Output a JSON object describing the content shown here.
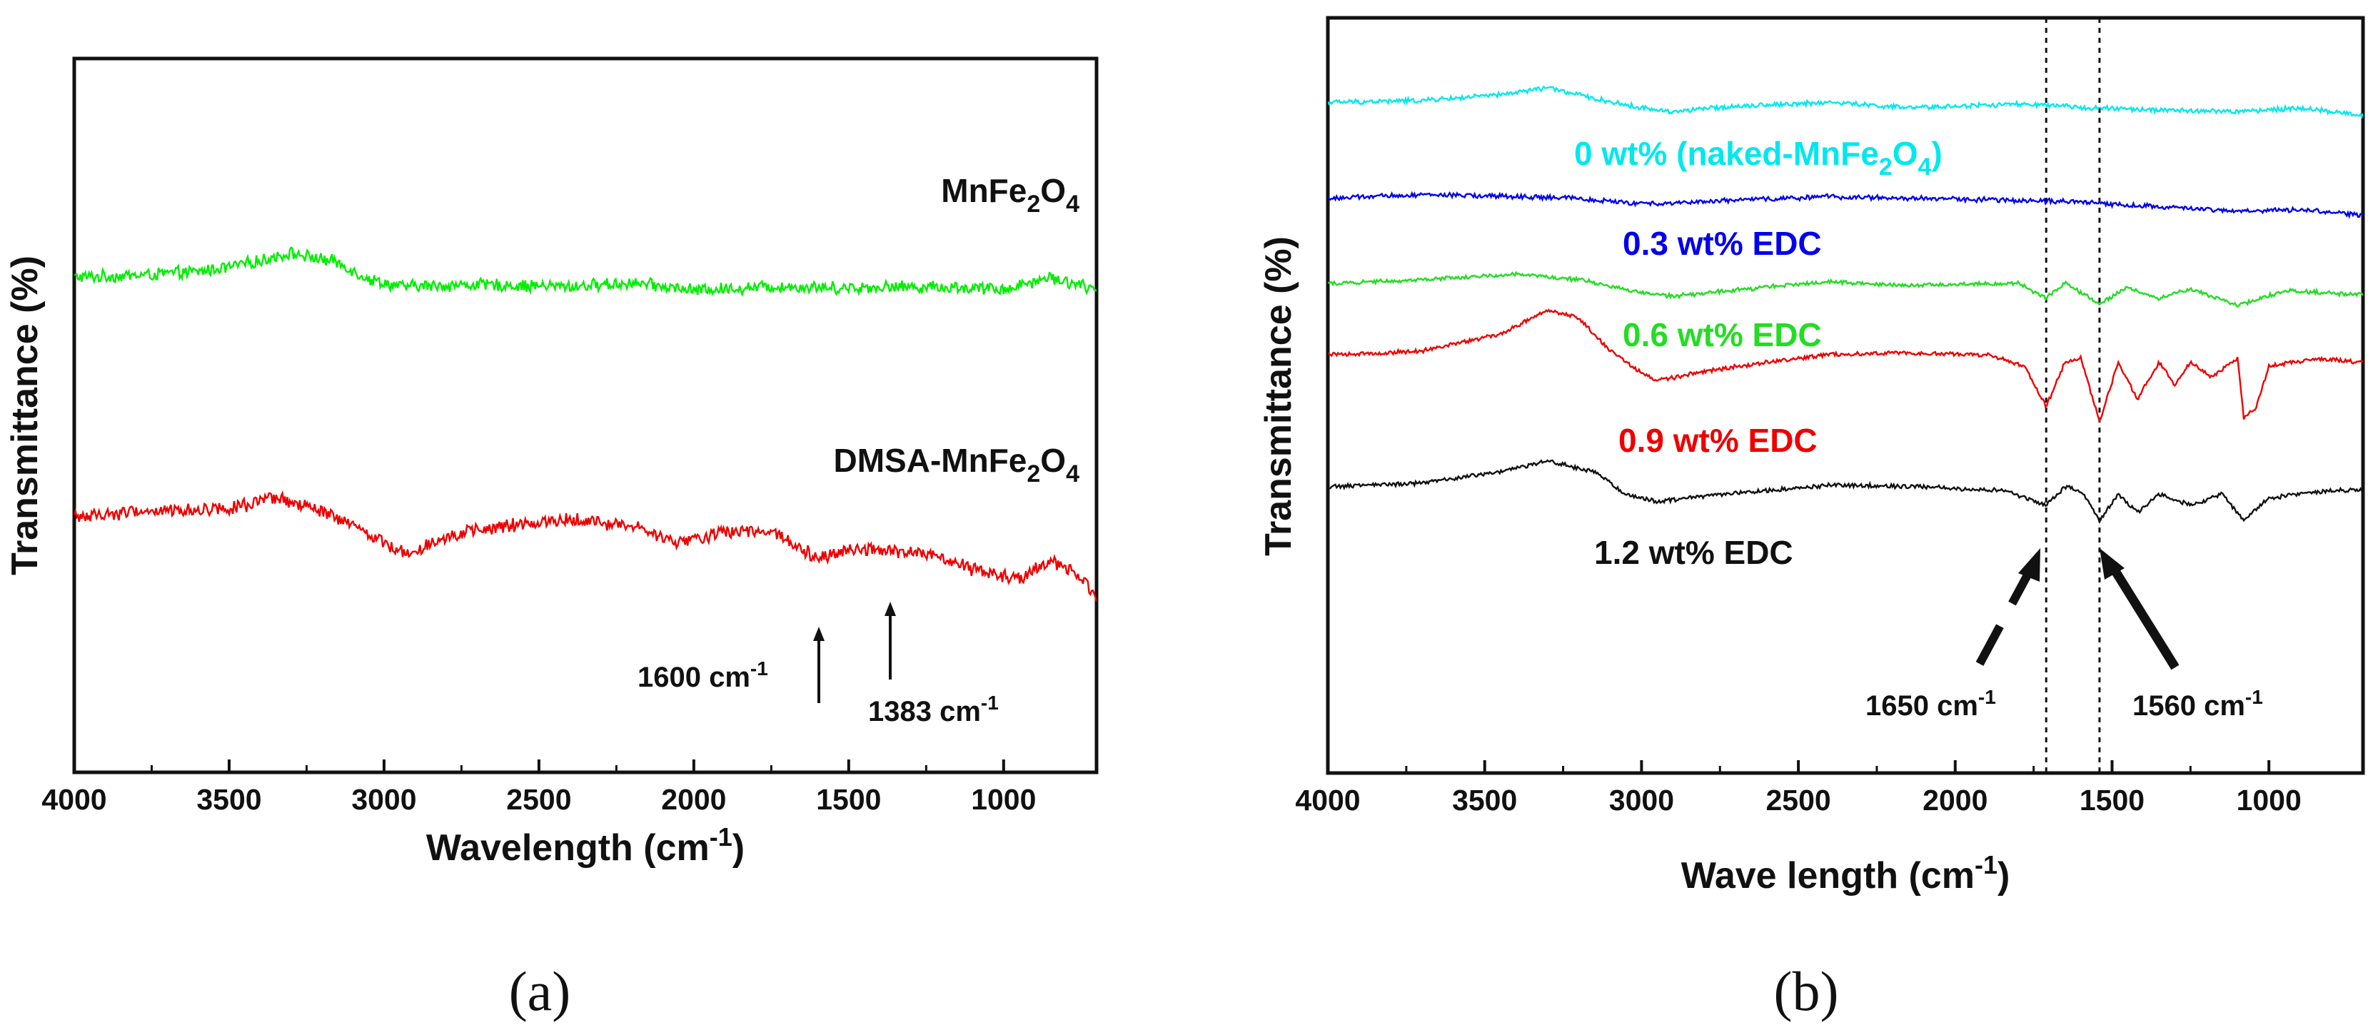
{
  "chart_data": [
    {
      "type": "line",
      "panel": "(a)",
      "xlabel": "Wavelength (cm",
      "xlabel_sup": "-1",
      "xlabel_end": ")",
      "ylabel": "Transmittance (%)",
      "xlim": [
        4000,
        700
      ],
      "xticks": [
        "4000",
        "3500",
        "3000",
        "2500",
        "2000",
        "1500",
        "1000"
      ],
      "series": [
        {
          "name": "MnFe2O4",
          "color": "#00ee00",
          "noise": 0.9,
          "points": [
            [
              4000,
              0.3
            ],
            [
              3800,
              0.35
            ],
            [
              3600,
              0.45
            ],
            [
              3450,
              0.65
            ],
            [
              3300,
              0.95
            ],
            [
              3150,
              0.7
            ],
            [
              3050,
              0.25
            ],
            [
              2950,
              0.05
            ],
            [
              2700,
              0.1
            ],
            [
              2400,
              0.05
            ],
            [
              2200,
              0.15
            ],
            [
              2000,
              -0.05
            ],
            [
              1750,
              0.05
            ],
            [
              1500,
              0.02
            ],
            [
              1250,
              0.05
            ],
            [
              1000,
              -0.02
            ],
            [
              850,
              0.3
            ],
            [
              750,
              0.1
            ],
            [
              700,
              -0.1
            ]
          ]
        },
        {
          "name": "DMSA-MnFe2O4",
          "color": "#ee0000",
          "noise": 1.0,
          "points": [
            [
              4000,
              0.3
            ],
            [
              3800,
              0.45
            ],
            [
              3600,
              0.5
            ],
            [
              3450,
              0.6
            ],
            [
              3350,
              0.8
            ],
            [
              3200,
              0.45
            ],
            [
              3050,
              -0.15
            ],
            [
              2930,
              -0.7
            ],
            [
              2800,
              -0.2
            ],
            [
              2600,
              0.05
            ],
            [
              2400,
              0.25
            ],
            [
              2200,
              0.05
            ],
            [
              2050,
              -0.4
            ],
            [
              1900,
              -0.1
            ],
            [
              1750,
              -0.05
            ],
            [
              1600,
              -0.8
            ],
            [
              1500,
              -0.55
            ],
            [
              1383,
              -0.6
            ],
            [
              1250,
              -0.7
            ],
            [
              1100,
              -1.1
            ],
            [
              950,
              -1.4
            ],
            [
              850,
              -0.9
            ],
            [
              750,
              -1.3
            ],
            [
              700,
              -1.9
            ]
          ]
        }
      ],
      "labels": [
        {
          "text": "MnFe",
          "sub1": "2",
          "mid": "O",
          "sub2": "4",
          "color": "#111111"
        },
        {
          "text": "DMSA-MnFe",
          "sub1": "2",
          "mid": "O",
          "sub2": "4",
          "color": "#111111"
        }
      ],
      "annotations": [
        {
          "text": "1600 cm",
          "sup": "-1",
          "x": 1600
        },
        {
          "text": "1383 cm",
          "sup": "-1",
          "x": 1383
        }
      ]
    },
    {
      "type": "line",
      "panel": "(b)",
      "xlabel": "Wave length (cm",
      "xlabel_sup": "-1",
      "xlabel_end": ")",
      "ylabel": "Transmittance (%)",
      "xlim": [
        4000,
        700
      ],
      "xticks": [
        "4000",
        "3500",
        "3000",
        "2500",
        "2000",
        "1500",
        "1000"
      ],
      "reference_lines": [
        1710,
        1540
      ],
      "series": [
        {
          "name": "0 wt% (naked-MnFe2O4)",
          "color": "#00e8ee",
          "noise": 0.35,
          "points": [
            [
              4000,
              0.05
            ],
            [
              3700,
              0.1
            ],
            [
              3450,
              0.25
            ],
            [
              3300,
              0.45
            ],
            [
              3150,
              0.15
            ],
            [
              3000,
              -0.1
            ],
            [
              2900,
              -0.2
            ],
            [
              2700,
              -0.05
            ],
            [
              2400,
              0.05
            ],
            [
              2150,
              -0.1
            ],
            [
              2000,
              -0.05
            ],
            [
              1800,
              0.0
            ],
            [
              1600,
              -0.08
            ],
            [
              1400,
              -0.15
            ],
            [
              1100,
              -0.2
            ],
            [
              900,
              -0.1
            ],
            [
              700,
              -0.3
            ]
          ]
        },
        {
          "name": "0.3 wt% EDC",
          "color": "#0000ee",
          "noise": 0.35,
          "points": [
            [
              4000,
              0.0
            ],
            [
              3700,
              0.1
            ],
            [
              3400,
              0.05
            ],
            [
              3200,
              0.0
            ],
            [
              3000,
              -0.15
            ],
            [
              2700,
              -0.05
            ],
            [
              2400,
              0.05
            ],
            [
              2100,
              0.0
            ],
            [
              1800,
              -0.05
            ],
            [
              1600,
              -0.1
            ],
            [
              1400,
              -0.2
            ],
            [
              1100,
              -0.35
            ],
            [
              900,
              -0.3
            ],
            [
              700,
              -0.45
            ]
          ]
        },
        {
          "name": "0.6 wt% EDC",
          "color": "#22dd22",
          "noise": 0.3,
          "points": [
            [
              4000,
              0.0
            ],
            [
              3700,
              0.1
            ],
            [
              3400,
              0.25
            ],
            [
              3200,
              0.1
            ],
            [
              3000,
              -0.25
            ],
            [
              2900,
              -0.35
            ],
            [
              2600,
              -0.1
            ],
            [
              2400,
              0.05
            ],
            [
              2200,
              -0.05
            ],
            [
              1800,
              0.0
            ],
            [
              1710,
              -0.4
            ],
            [
              1650,
              0.0
            ],
            [
              1540,
              -0.55
            ],
            [
              1450,
              -0.1
            ],
            [
              1350,
              -0.4
            ],
            [
              1250,
              -0.15
            ],
            [
              1100,
              -0.6
            ],
            [
              950,
              -0.2
            ],
            [
              700,
              -0.3
            ]
          ]
        },
        {
          "name": "0.9 wt% EDC",
          "color": "#ee0000",
          "noise": 0.3,
          "points": [
            [
              4000,
              0.0
            ],
            [
              3700,
              0.1
            ],
            [
              3450,
              0.55
            ],
            [
              3300,
              1.2
            ],
            [
              3200,
              1.0
            ],
            [
              3100,
              0.1
            ],
            [
              3000,
              -0.5
            ],
            [
              2950,
              -0.7
            ],
            [
              2800,
              -0.45
            ],
            [
              2600,
              -0.2
            ],
            [
              2400,
              0.0
            ],
            [
              2200,
              0.05
            ],
            [
              1900,
              0.0
            ],
            [
              1780,
              -0.3
            ],
            [
              1710,
              -1.4
            ],
            [
              1650,
              -0.2
            ],
            [
              1600,
              -0.1
            ],
            [
              1540,
              -1.8
            ],
            [
              1480,
              -0.2
            ],
            [
              1420,
              -1.2
            ],
            [
              1350,
              -0.2
            ],
            [
              1300,
              -0.8
            ],
            [
              1250,
              -0.2
            ],
            [
              1180,
              -0.6
            ],
            [
              1100,
              -0.1
            ],
            [
              1080,
              -1.7
            ],
            [
              1040,
              -1.4
            ],
            [
              1000,
              -0.3
            ],
            [
              850,
              -0.1
            ],
            [
              700,
              -0.2
            ]
          ]
        },
        {
          "name": "1.2 wt% EDC",
          "color": "#111111",
          "noise": 0.3,
          "points": [
            [
              4000,
              0.0
            ],
            [
              3700,
              0.1
            ],
            [
              3450,
              0.4
            ],
            [
              3300,
              0.7
            ],
            [
              3150,
              0.4
            ],
            [
              3050,
              -0.2
            ],
            [
              2950,
              -0.4
            ],
            [
              2800,
              -0.25
            ],
            [
              2600,
              -0.1
            ],
            [
              2400,
              0.05
            ],
            [
              2100,
              0.0
            ],
            [
              1850,
              -0.1
            ],
            [
              1710,
              -0.5
            ],
            [
              1650,
              0.0
            ],
            [
              1600,
              -0.1
            ],
            [
              1540,
              -0.9
            ],
            [
              1480,
              -0.2
            ],
            [
              1420,
              -0.7
            ],
            [
              1350,
              -0.2
            ],
            [
              1250,
              -0.5
            ],
            [
              1150,
              -0.2
            ],
            [
              1080,
              -0.9
            ],
            [
              1000,
              -0.3
            ],
            [
              800,
              -0.1
            ],
            [
              700,
              -0.1
            ]
          ]
        }
      ],
      "labels": [
        {
          "text": "0 wt% (naked-MnFe",
          "sub1": "2",
          "mid": "O",
          "sub2": "4",
          "end": ")",
          "color": "#00e8ee"
        },
        {
          "text": "0.3 wt% EDC",
          "color": "#0000ee"
        },
        {
          "text": "0.6 wt% EDC",
          "color": "#22dd22"
        },
        {
          "text": "0.9 wt% EDC",
          "color": "#ee0000"
        },
        {
          "text": "1.2 wt% EDC",
          "color": "#111111"
        }
      ],
      "annotations": [
        {
          "text": "1650 cm",
          "sup": "-1",
          "x": 1650
        },
        {
          "text": "1560 cm",
          "sup": "-1",
          "x": 1560
        }
      ]
    }
  ]
}
